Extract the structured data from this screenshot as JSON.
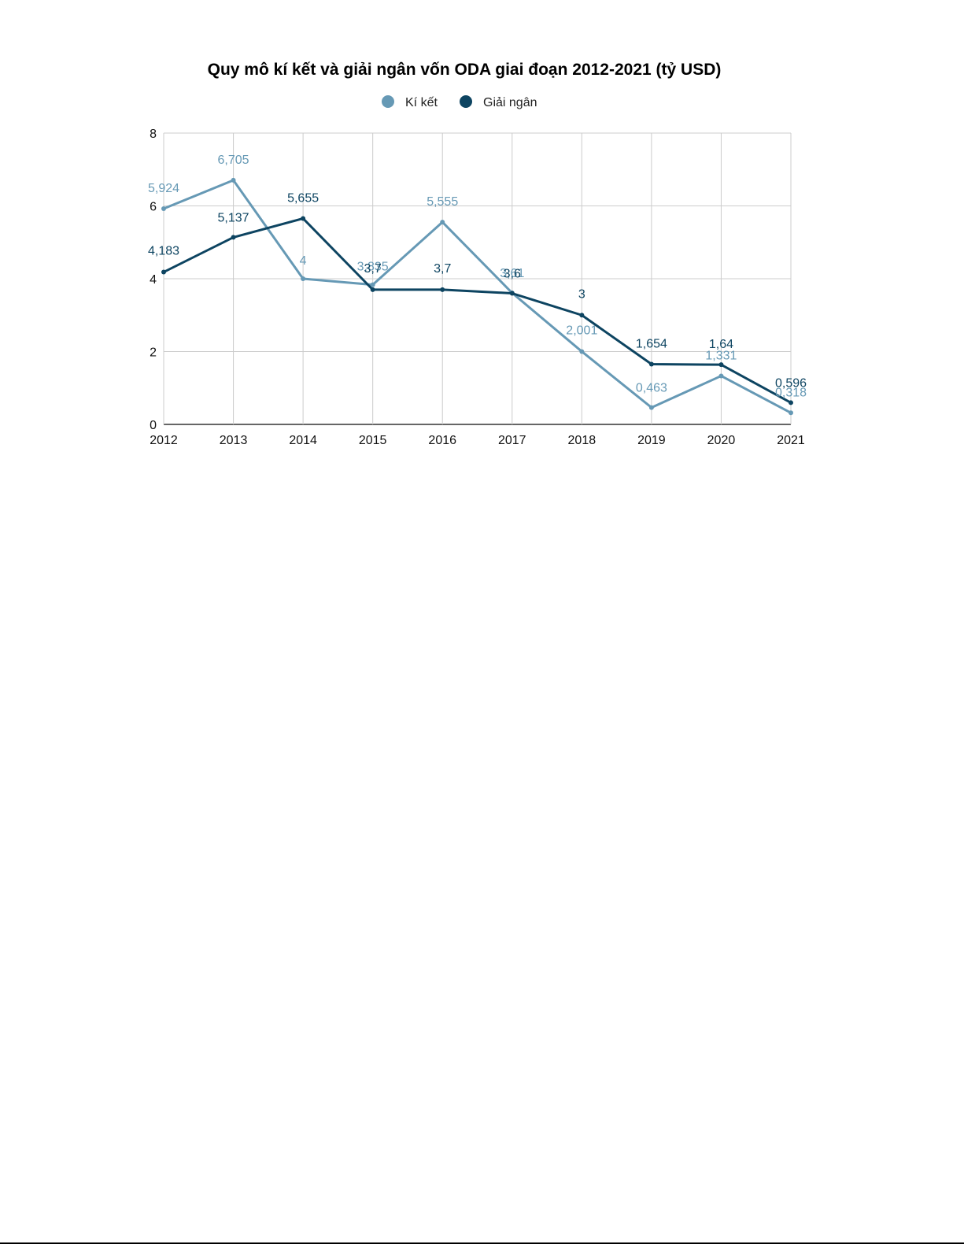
{
  "chart_data": {
    "type": "line",
    "title": "Quy mô kí kết và giải ngân vốn ODA giai đoạn 2012-2021 (tỷ USD)",
    "xlabel": "",
    "ylabel": "",
    "x": [
      "2012",
      "2013",
      "2014",
      "2015",
      "2016",
      "2017",
      "2018",
      "2019",
      "2020",
      "2021"
    ],
    "ylim": [
      0,
      8
    ],
    "yticks": [
      0,
      2,
      4,
      6,
      8
    ],
    "grid": true,
    "legend_position": "top-center",
    "series": [
      {
        "name": "Kí kết",
        "color": "#6699b5",
        "values": [
          5.924,
          6.705,
          4,
          3.835,
          5.555,
          3.61,
          2.001,
          0.463,
          1.331,
          0.318
        ],
        "labels": [
          "5,924",
          "6,705",
          "4",
          "3,835",
          "5,555",
          "3,61",
          "2,001",
          "0,463",
          "1,331",
          "0,318"
        ]
      },
      {
        "name": "Giải ngân",
        "color": "#0d4461",
        "values": [
          4.183,
          5.137,
          5.655,
          3.7,
          3.7,
          3.6,
          3,
          1.654,
          1.64,
          0.596
        ],
        "labels": [
          "4,183",
          "5,137",
          "5,655",
          "3,7",
          "3,7",
          "3,6",
          "3",
          "1,654",
          "1,64",
          "0,596"
        ]
      }
    ]
  }
}
